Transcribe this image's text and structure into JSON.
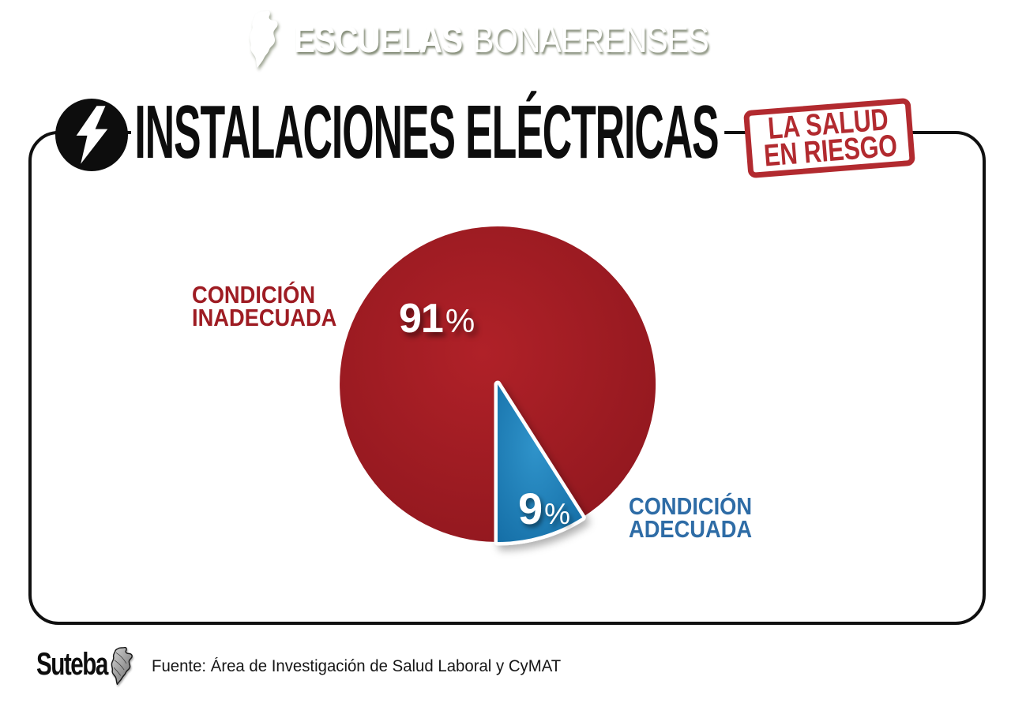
{
  "banner": {
    "brand_bold": "ESCUELAS",
    "brand_light": "BONAERENSES",
    "map_icon": "buenos-aires-province-map",
    "bg_color": "#93b45a",
    "text_color": "#ffffff"
  },
  "header": {
    "icon": "lightning-bolt",
    "title": "INSTALACIONES ELÉCTRICAS",
    "stamp": {
      "line1": "LA SALUD",
      "line2": "EN RIESGO",
      "color": "#b22a2f"
    }
  },
  "chart_data": {
    "type": "pie",
    "title": "INSTALACIONES ELÉCTRICAS",
    "start_angle_deg": 180,
    "direction": "clockwise",
    "legend_position": "side-labels",
    "slices": [
      {
        "label": "CONDICIÓN INADECUADA",
        "label_lines": [
          "CONDICIÓN",
          "INADECUADA"
        ],
        "value": 91,
        "display": "91",
        "unit": "%",
        "color_inner": "#b02128",
        "color_outer": "#8c161d",
        "label_color": "#9e1c23",
        "separated": false
      },
      {
        "label": "CONDICIÓN ADECUADA",
        "label_lines": [
          "CONDICIÓN",
          "ADECUADA"
        ],
        "value": 9,
        "display": "9",
        "unit": "%",
        "color_inner": "#2f93ca",
        "color_outer": "#146da5",
        "label_color": "#2e6ca6",
        "separated": true
      }
    ]
  },
  "footer": {
    "logo_text": "Suteba",
    "logo_map_icon": "buenos-aires-province-map",
    "source": "Fuente: Área de Investigación de Salud Laboral y CyMAT"
  }
}
